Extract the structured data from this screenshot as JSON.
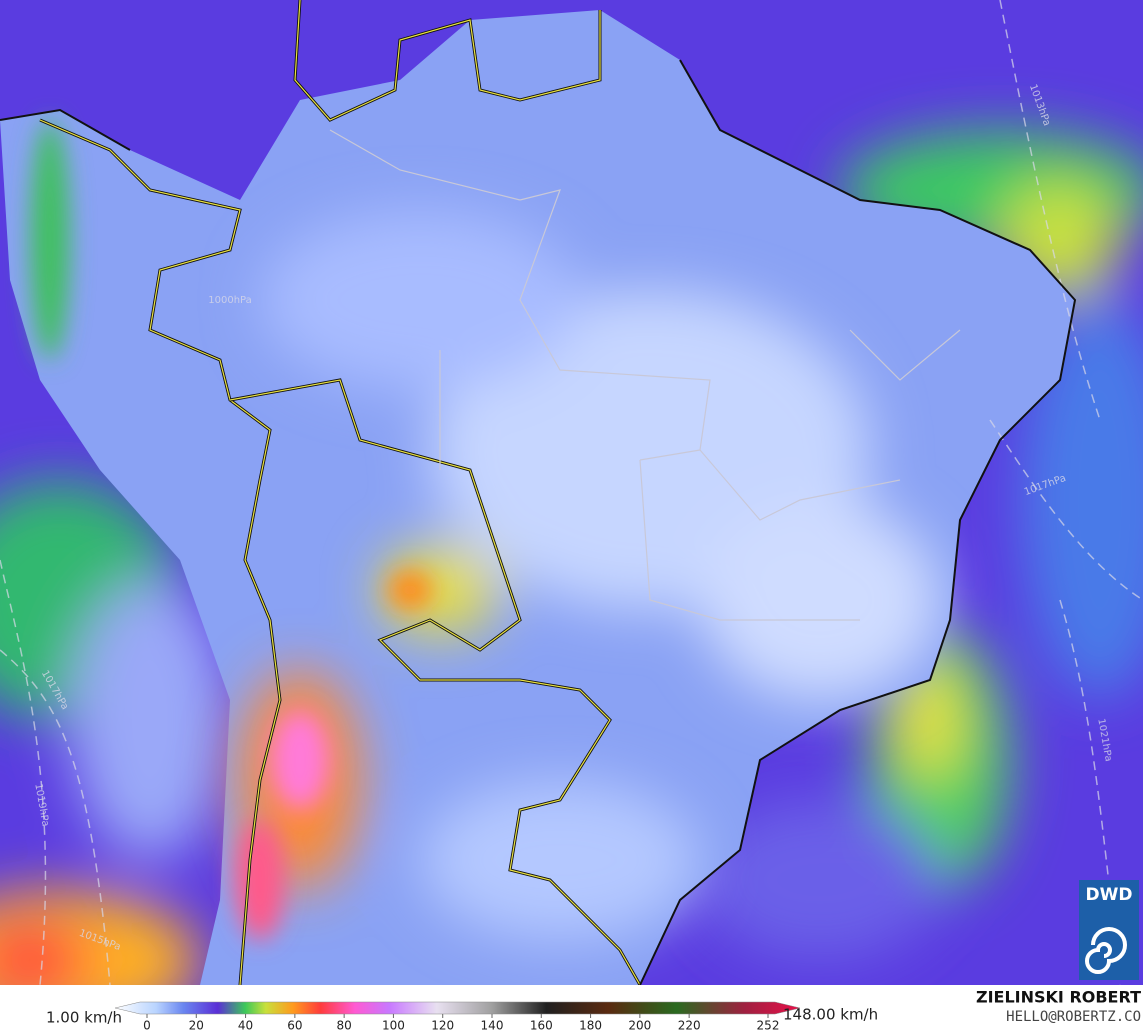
{
  "legend": {
    "min_label": "1.00 km/h",
    "max_label": "148.00 km/h",
    "ticks": [
      0,
      20,
      40,
      60,
      80,
      100,
      120,
      140,
      160,
      180,
      200,
      220,
      252
    ]
  },
  "credit": {
    "author": "ZIELINSKI ROBERT",
    "contact": "HELLO@ROBERTZ.CO"
  },
  "logo": "DWD",
  "isobar_labels": [
    "1013hPa",
    "1017hPa",
    "1021hPa",
    "1019hPa",
    "1015hPa",
    "1017hPa",
    "1000hPa"
  ]
}
